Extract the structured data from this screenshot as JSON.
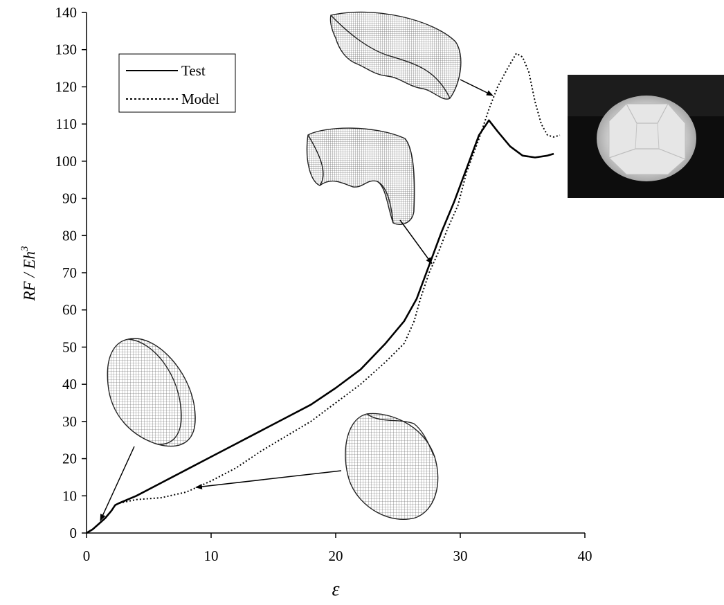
{
  "chart_data": {
    "type": "line",
    "title": "",
    "xlabel": "ε",
    "ylabel": "RF / Eh",
    "ylabel_superscript": "3",
    "xlim": [
      0,
      40
    ],
    "ylim": [
      0,
      140
    ],
    "x_ticks": [
      "0",
      "10",
      "20",
      "30",
      "40"
    ],
    "y_ticks": [
      "0",
      "10",
      "20",
      "30",
      "40",
      "50",
      "60",
      "70",
      "80",
      "90",
      "100",
      "110",
      "120",
      "130",
      "140"
    ],
    "grid": false,
    "legend_position": "top-left",
    "series": [
      {
        "name": "Test",
        "style": "solid",
        "color": "#000000",
        "points": [
          [
            0,
            0
          ],
          [
            0.5,
            1
          ],
          [
            1,
            2.5
          ],
          [
            1.5,
            4
          ],
          [
            2,
            6
          ],
          [
            2.3,
            7.5
          ],
          [
            2.6,
            8
          ],
          [
            4,
            10
          ],
          [
            6,
            13.5
          ],
          [
            8,
            17
          ],
          [
            10,
            20.5
          ],
          [
            12,
            24
          ],
          [
            14,
            27.5
          ],
          [
            16,
            31
          ],
          [
            18,
            34.5
          ],
          [
            20,
            39
          ],
          [
            22,
            44
          ],
          [
            24,
            51
          ],
          [
            25.5,
            57
          ],
          [
            26.5,
            63
          ],
          [
            27.5,
            72
          ],
          [
            28.5,
            81
          ],
          [
            29.5,
            89
          ],
          [
            30.5,
            98
          ],
          [
            31.5,
            107
          ],
          [
            32.3,
            111
          ],
          [
            33,
            108
          ],
          [
            34,
            104
          ],
          [
            35,
            101.5
          ],
          [
            36,
            101
          ],
          [
            37,
            101.5
          ],
          [
            37.5,
            102
          ]
        ]
      },
      {
        "name": "Model",
        "style": "dotted",
        "color": "#000000",
        "points": [
          [
            0,
            0
          ],
          [
            0.5,
            1
          ],
          [
            1,
            2.5
          ],
          [
            1.5,
            4
          ],
          [
            2,
            6
          ],
          [
            2.3,
            7.5
          ],
          [
            2.6,
            8
          ],
          [
            4,
            9
          ],
          [
            6,
            9.5
          ],
          [
            8,
            11
          ],
          [
            10,
            14
          ],
          [
            12,
            17.5
          ],
          [
            14,
            22
          ],
          [
            16,
            26
          ],
          [
            18,
            30
          ],
          [
            20,
            35
          ],
          [
            22,
            40
          ],
          [
            24,
            46
          ],
          [
            25.5,
            51
          ],
          [
            26.3,
            57
          ],
          [
            26.8,
            63
          ],
          [
            27.5,
            70
          ],
          [
            28.3,
            76
          ],
          [
            29,
            82
          ],
          [
            29.8,
            88
          ],
          [
            30.5,
            97
          ],
          [
            31.5,
            106
          ],
          [
            32.3,
            114
          ],
          [
            33,
            120
          ],
          [
            33.8,
            125
          ],
          [
            34.5,
            129
          ],
          [
            35,
            128
          ],
          [
            35.5,
            124
          ],
          [
            36,
            116
          ],
          [
            36.5,
            110
          ],
          [
            37,
            107
          ],
          [
            37.5,
            106.5
          ],
          [
            38,
            107
          ]
        ]
      }
    ],
    "annotations": [
      {
        "name": "shell-initial",
        "target": [
          1.2,
          3.5
        ]
      },
      {
        "name": "shell-dimpled",
        "target": [
          8.8,
          12.5
        ]
      },
      {
        "name": "shell-folded",
        "target": [
          27.8,
          72
        ]
      },
      {
        "name": "shell-buckled",
        "target": [
          32.5,
          117
        ]
      }
    ]
  }
}
